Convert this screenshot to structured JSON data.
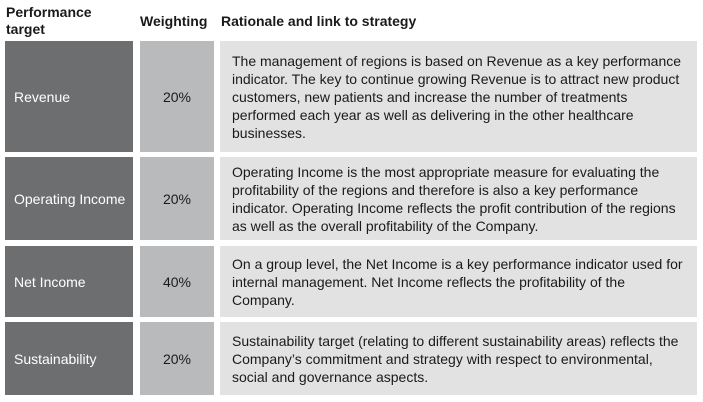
{
  "headers": {
    "target": "Performance target",
    "weighting": "Weighting",
    "rationale": "Rationale and link to strategy"
  },
  "rows": [
    {
      "target": "Revenue",
      "weighting": "20%",
      "rationale": "The management of regions is based on Revenue as a key performance indicator. The key to continue growing Revenue is to attract new product customers, new patients and increase the number of treatments performed each year as well as delivering in the other healthcare businesses."
    },
    {
      "target": "Operating Income",
      "weighting": "20%",
      "rationale": "Operating Income is the most appropriate measure for evaluating the profitability of the regions and therefore is also a key performance indicator. Operating Income reflects the profit contribution of the regions as well as the overall profitability of the Company."
    },
    {
      "target": "Net Income",
      "weighting": "40%",
      "rationale": "On a group level, the Net Income is a key performance indicator used for internal management. Net Income reflects the profitability of the Company."
    },
    {
      "target": "Sustainability",
      "weighting": "20%",
      "rationale": "Sustainability target (relating to different sustainability areas) reflects the Company’s commitment and strategy with respect to environmental, social and governance aspects."
    }
  ],
  "colors": {
    "target_bg": "#6d6e70",
    "weighting_bg": "#b9babb",
    "rationale_bg": "#e2e2e2"
  }
}
